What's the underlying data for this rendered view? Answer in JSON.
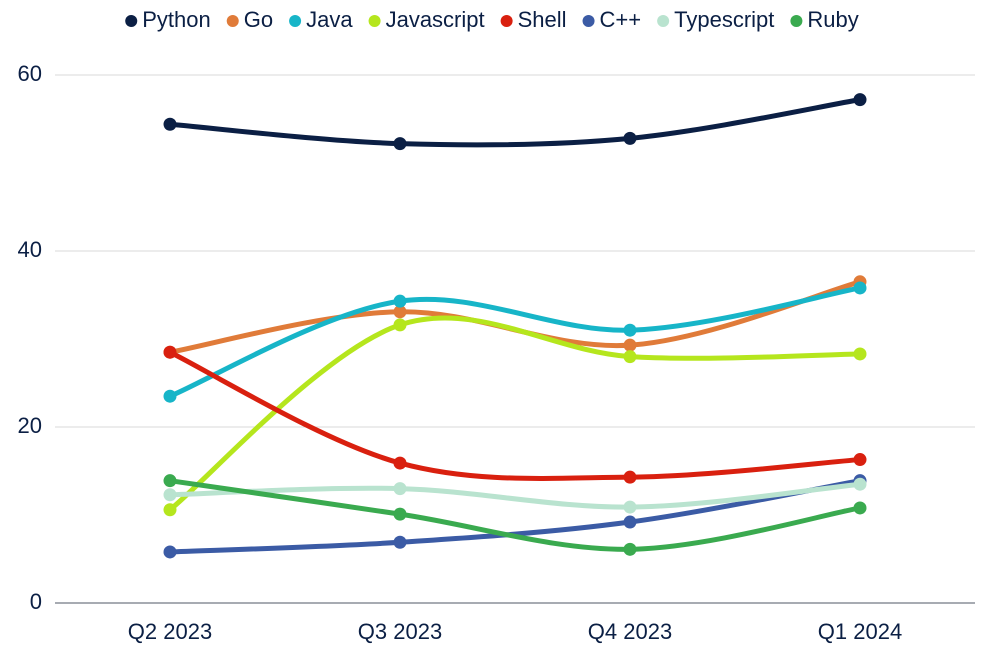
{
  "chart_data": {
    "type": "line",
    "categories": [
      "Q2 2023",
      "Q3 2023",
      "Q4 2023",
      "Q1 2024"
    ],
    "ylim": [
      0,
      60
    ],
    "yticks": [
      0,
      20,
      40,
      60
    ],
    "grid": true,
    "legend": "top",
    "smooth": true,
    "series": [
      {
        "name": "Python",
        "color": "#0b1f44",
        "values": [
          54.4,
          52.2,
          52.8,
          57.2
        ]
      },
      {
        "name": "Go",
        "color": "#e07b39",
        "values": [
          28.5,
          33.1,
          29.3,
          36.5
        ]
      },
      {
        "name": "Java",
        "color": "#17b5c8",
        "values": [
          23.5,
          34.3,
          31.0,
          35.8
        ]
      },
      {
        "name": "Javascript",
        "color": "#b5e61d",
        "values": [
          10.6,
          31.6,
          28.0,
          28.3
        ]
      },
      {
        "name": "Shell",
        "color": "#d9200f",
        "values": [
          28.5,
          15.9,
          14.3,
          16.3
        ]
      },
      {
        "name": "C++",
        "color": "#3b5ba5",
        "values": [
          5.8,
          6.9,
          9.2,
          13.9
        ]
      },
      {
        "name": "Typescript",
        "color": "#b9e3cf",
        "values": [
          12.3,
          13.0,
          10.9,
          13.5
        ]
      },
      {
        "name": "Ruby",
        "color": "#3aaa4f",
        "values": [
          13.9,
          10.1,
          6.1,
          10.8
        ]
      }
    ]
  }
}
